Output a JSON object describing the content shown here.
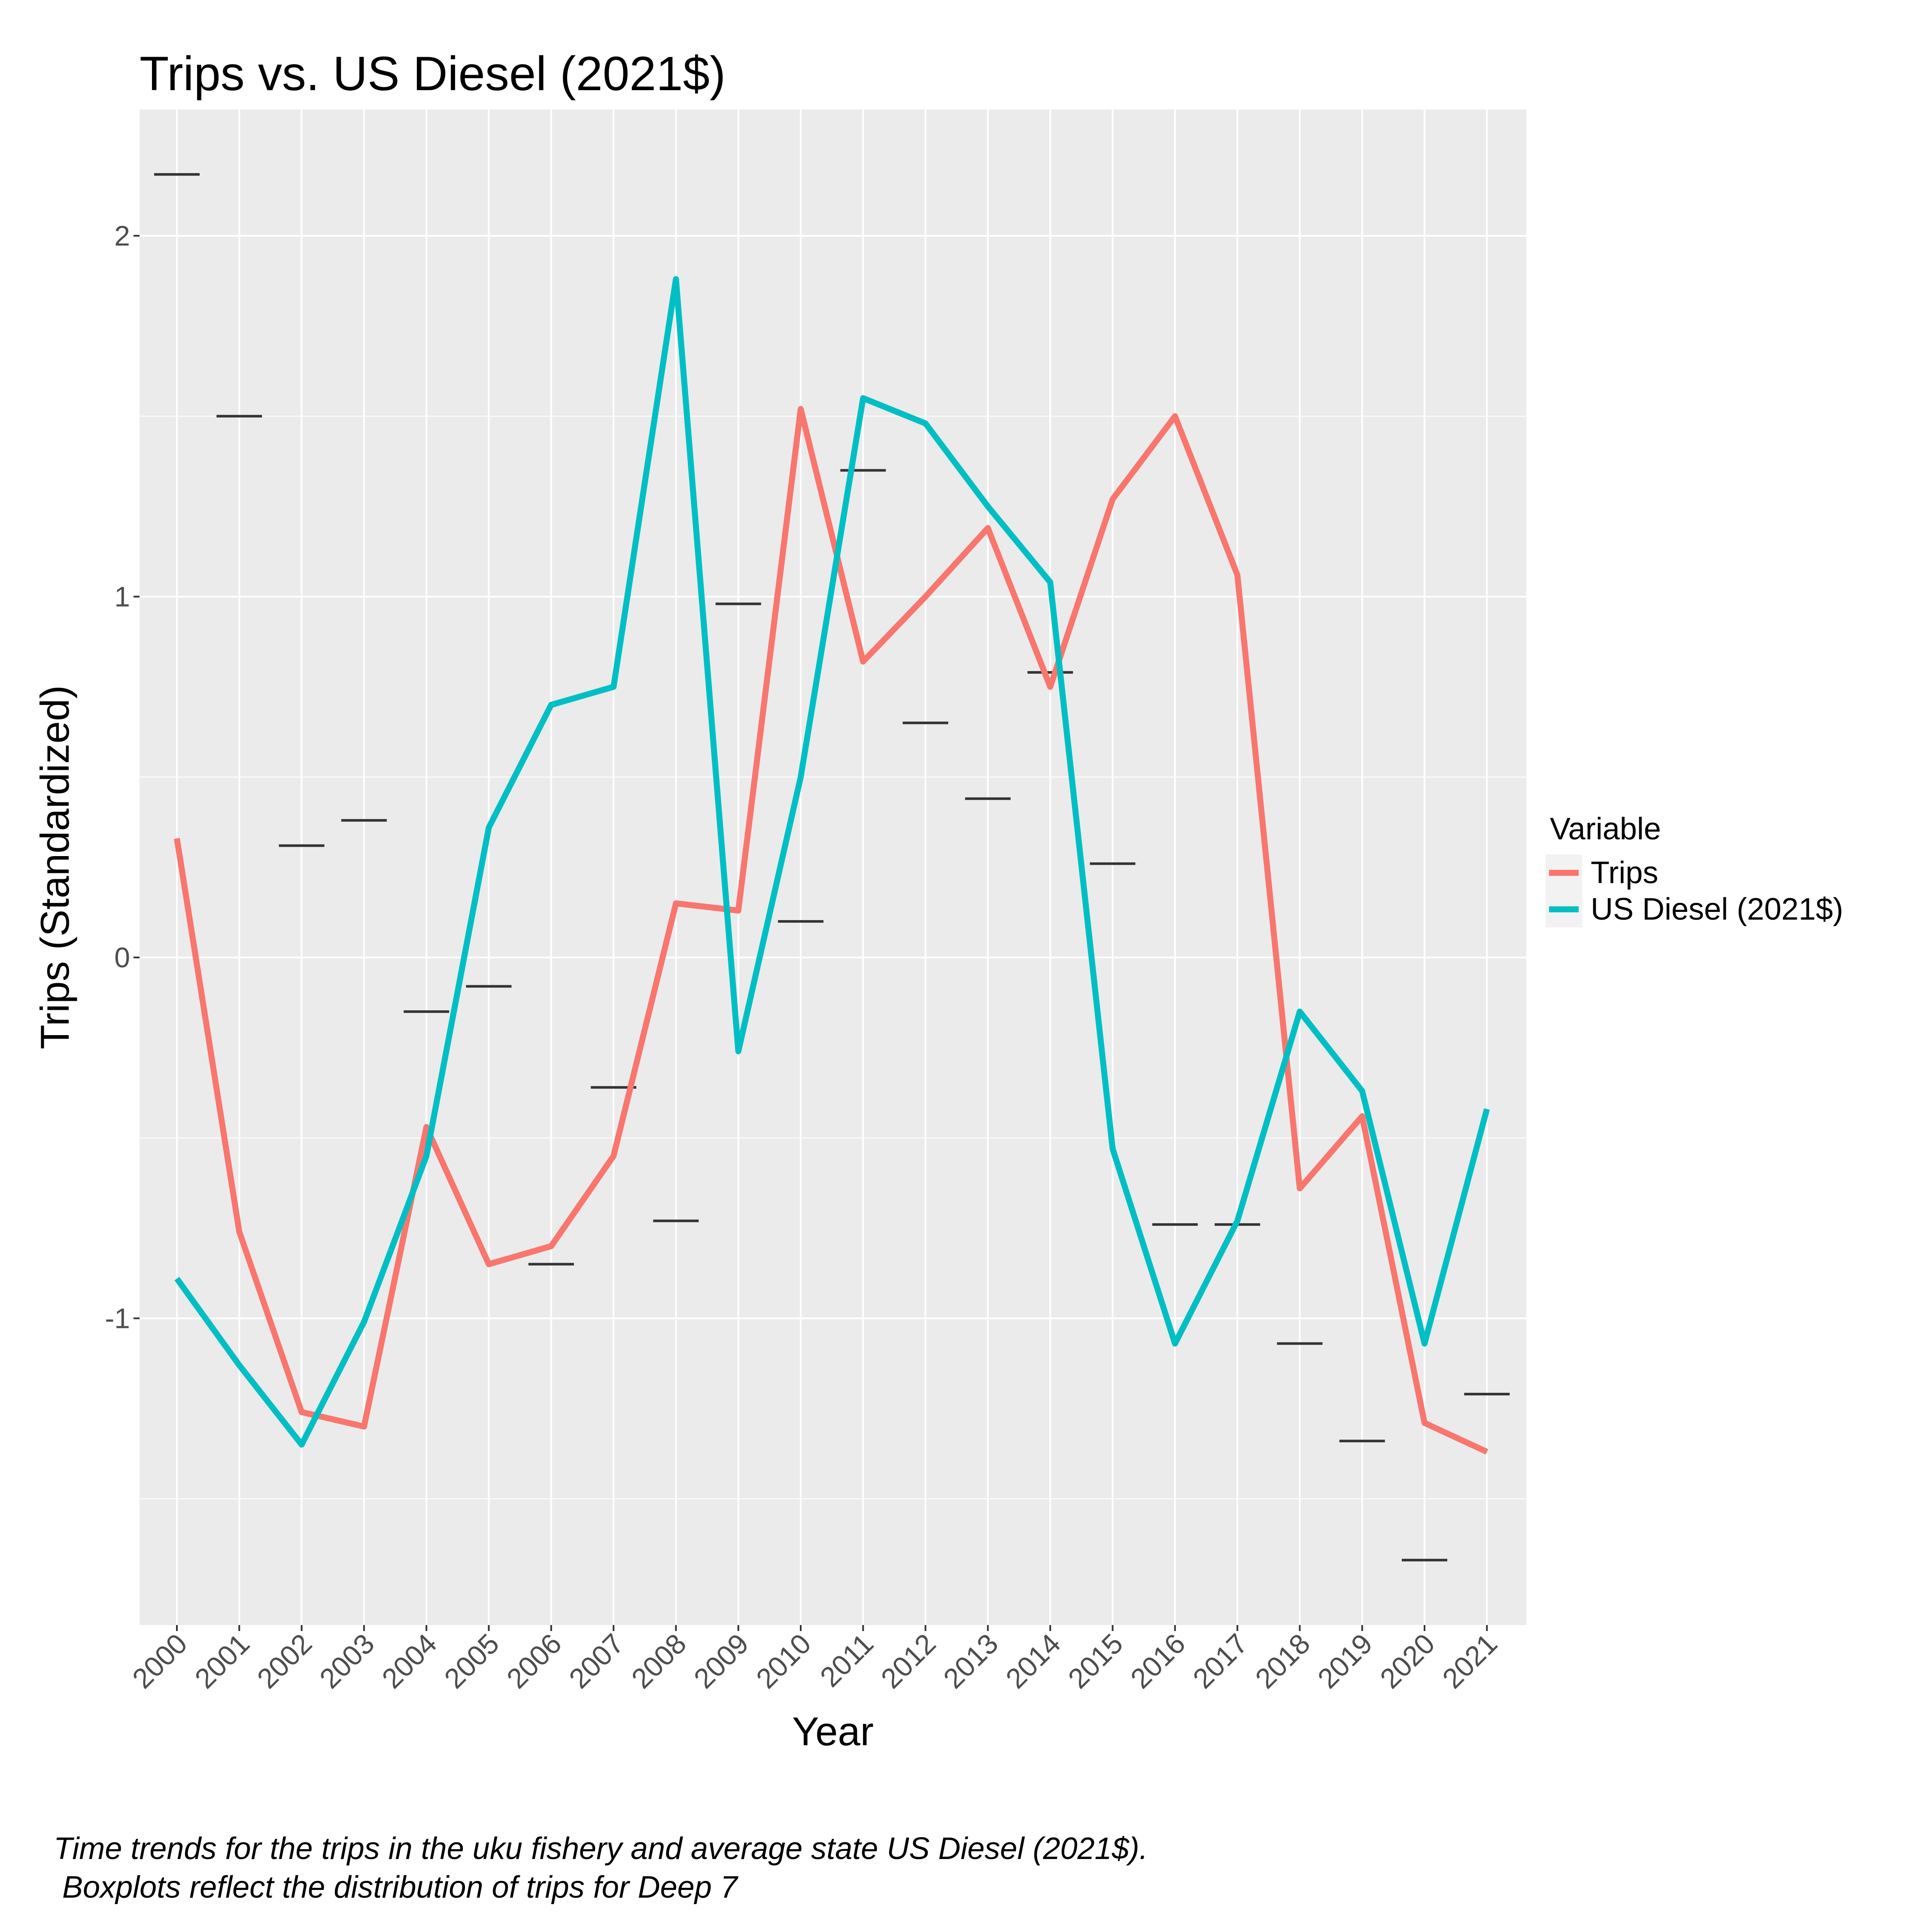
{
  "chart_data": {
    "type": "line",
    "title": "Trips vs. US Diesel (2021$)",
    "xlabel": "Year",
    "ylabel": "Trips (Standardized)",
    "categories": [
      "2000",
      "2001",
      "2002",
      "2003",
      "2004",
      "2005",
      "2006",
      "2007",
      "2008",
      "2009",
      "2010",
      "2011",
      "2012",
      "2013",
      "2014",
      "2015",
      "2016",
      "2017",
      "2018",
      "2019",
      "2020",
      "2021"
    ],
    "ylim": [
      -1.85,
      2.35
    ],
    "yticks": [
      -1,
      0,
      1,
      2
    ],
    "ytick_labels": [
      "-1",
      "0",
      "1",
      "2"
    ],
    "grid": true,
    "legend_title": "Variable",
    "legend_position": "right",
    "series": [
      {
        "name": "Trips",
        "color": "#F8766D",
        "values": [
          0.33,
          -0.76,
          -1.26,
          -1.3,
          -0.47,
          -0.85,
          -0.8,
          -0.55,
          0.15,
          0.13,
          1.52,
          0.82,
          1.0,
          1.19,
          0.75,
          1.27,
          1.5,
          1.06,
          -0.64,
          -0.44,
          -1.29,
          -1.37
        ]
      },
      {
        "name": "US Diesel (2021$)",
        "color": "#00BFC4",
        "values": [
          -0.89,
          -1.13,
          -1.35,
          -1.01,
          -0.55,
          0.36,
          0.7,
          0.75,
          1.88,
          -0.26,
          0.5,
          1.55,
          1.48,
          1.25,
          1.04,
          -0.53,
          -1.07,
          -0.73,
          -0.15,
          -0.37,
          -1.07,
          -0.42
        ]
      }
    ],
    "boxplot_medians": [
      2.17,
      1.5,
      0.31,
      0.38,
      -0.15,
      -0.08,
      -0.85,
      -0.36,
      -0.73,
      0.98,
      0.1,
      1.35,
      0.65,
      0.44,
      0.79,
      0.26,
      -0.74,
      -0.74,
      -1.07,
      -1.34,
      -1.67,
      -1.21
    ]
  },
  "caption": {
    "line1": "Time trends for the trips in the uku fishery and average state US Diesel (2021$).",
    "line2": " Boxplots reflect the distribution of trips for Deep 7"
  }
}
